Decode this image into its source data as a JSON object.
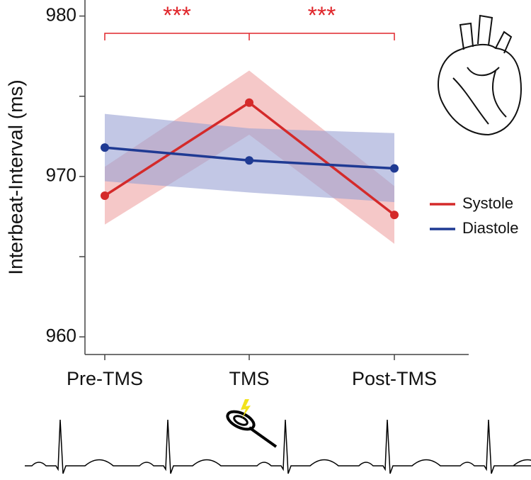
{
  "chart_data": {
    "type": "line",
    "y_label": "Interbeat-Interval (ms)",
    "categories": [
      "Pre-TMS",
      "TMS",
      "Post-TMS"
    ],
    "series": [
      {
        "name": "Systole",
        "color": "#d42a2a",
        "band_color": "#eea4a4",
        "values": [
          968.8,
          974.6,
          967.6
        ],
        "lower": [
          967.0,
          972.6,
          965.8
        ],
        "upper": [
          970.6,
          976.6,
          969.4
        ]
      },
      {
        "name": "Diastole",
        "color": "#1f3a93",
        "band_color": "#9aa2d4",
        "values": [
          971.8,
          971.0,
          970.5
        ],
        "lower": [
          969.7,
          969.0,
          968.4
        ],
        "upper": [
          973.9,
          973.0,
          972.7
        ]
      }
    ],
    "ylim": [
      958.9,
      981
    ],
    "yticks": [
      960,
      970,
      980
    ],
    "minor_yticks": [
      965,
      975
    ],
    "annotations": [
      "***",
      "***"
    ],
    "annotation_color": "#e0262b"
  }
}
